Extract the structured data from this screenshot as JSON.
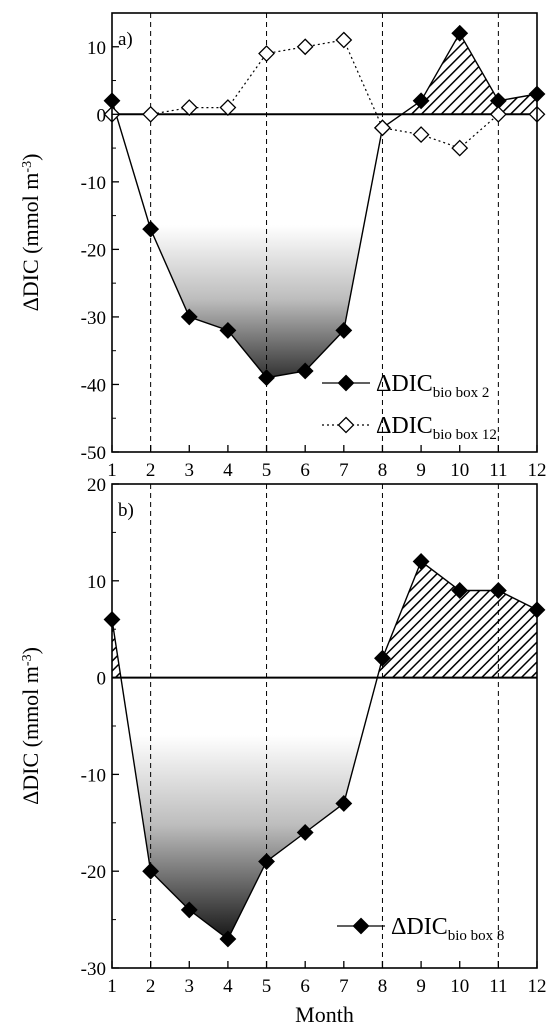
{
  "chart_data": [
    {
      "type": "area",
      "panel_label": "a)",
      "xlabel": "",
      "ylabel": "ΔDIC (mmol m-3)",
      "ylabel_main": "ΔDIC (mmol m",
      "ylabel_sup": "-3",
      "ylabel_close": ")",
      "x_ticks": [
        "1",
        "2",
        "3",
        "4",
        "5",
        "6",
        "7",
        "8",
        "9",
        "10",
        "11",
        "12"
      ],
      "y_ticks": [
        "10",
        "0",
        "-10",
        "-20",
        "-30",
        "-40",
        "-50"
      ],
      "xlim": [
        1,
        12
      ],
      "ylim": [
        -50,
        15
      ],
      "vlines": [
        2,
        5,
        8,
        11
      ],
      "legend_position": "bottom-right",
      "series": [
        {
          "name": "ΔDICbio box 2",
          "name_main": "ΔDIC",
          "name_sub": "bio box 2",
          "marker": "filled-diamond",
          "line": "solid",
          "x": [
            1,
            2,
            3,
            4,
            5,
            6,
            7,
            8,
            9,
            10,
            11,
            12
          ],
          "values": [
            2,
            -17,
            -30,
            -32,
            -39,
            -38,
            -32,
            -2,
            2,
            12,
            2,
            3
          ]
        },
        {
          "name": "ΔDICbio box 12",
          "name_main": "ΔDIC",
          "name_sub": "bio box 12",
          "marker": "open-diamond",
          "line": "dotted",
          "x": [
            1,
            2,
            3,
            4,
            5,
            6,
            7,
            8,
            9,
            10,
            11,
            12
          ],
          "values": [
            0,
            0,
            1,
            1,
            9,
            10,
            11,
            -2,
            -3,
            -5,
            0,
            0
          ]
        }
      ]
    },
    {
      "type": "area",
      "panel_label": "b)",
      "xlabel": "Month",
      "ylabel": "ΔDIC (mmol m-3)",
      "ylabel_main": "ΔDIC (mmol m",
      "ylabel_sup": "-3",
      "ylabel_close": ")",
      "x_ticks": [
        "1",
        "2",
        "3",
        "4",
        "5",
        "6",
        "7",
        "8",
        "9",
        "10",
        "11",
        "12"
      ],
      "y_ticks": [
        "20",
        "10",
        "0",
        "-10",
        "-20",
        "-30"
      ],
      "xlim": [
        1,
        12
      ],
      "ylim": [
        -30,
        20
      ],
      "vlines": [
        2,
        5,
        8,
        11
      ],
      "legend_position": "bottom-right",
      "series": [
        {
          "name": "ΔDICbio box 8",
          "name_main": "ΔDIC",
          "name_sub": "bio box 8",
          "marker": "filled-diamond",
          "line": "solid",
          "x": [
            1,
            2,
            3,
            4,
            5,
            6,
            7,
            8,
            9,
            10,
            11,
            12
          ],
          "values": [
            6,
            -20,
            -24,
            -27,
            -19,
            -16,
            -13,
            2,
            12,
            9,
            9,
            7
          ]
        }
      ]
    }
  ]
}
